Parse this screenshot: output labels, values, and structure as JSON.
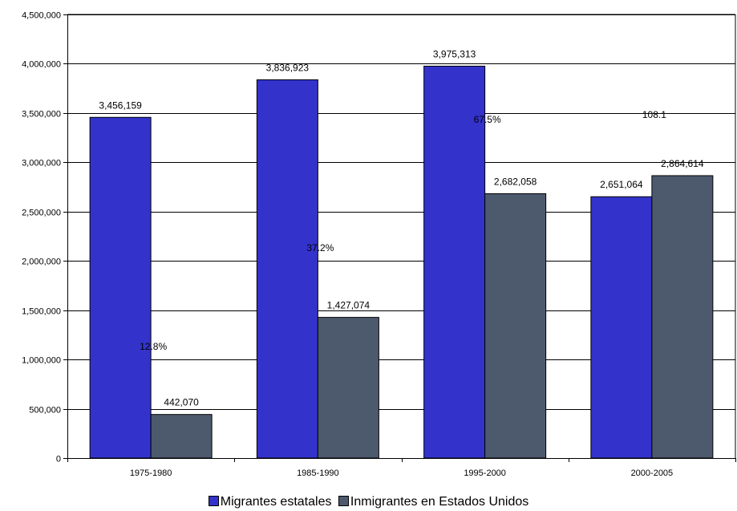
{
  "chart_data": {
    "type": "bar",
    "categories": [
      "1975-1980",
      "1985-1990",
      "1995-2000",
      "2000-2005"
    ],
    "series": [
      {
        "name": "Migrantes estatales",
        "color": "#3333cc",
        "values": [
          3456159,
          3836923,
          3975313,
          2651064
        ],
        "labels": [
          "3,456,159",
          "3,836,923",
          "3,975,313",
          "2,651,064"
        ]
      },
      {
        "name": "Inmigrantes en Estados Unidos",
        "color": "#4d5a6e",
        "values": [
          442070,
          1427074,
          2682058,
          2864614
        ],
        "labels": [
          "442,070",
          "1,427,074",
          "2,682,058",
          "2,864,614"
        ]
      }
    ],
    "annotations": [
      {
        "category": "1975-1980",
        "text": "12.8%",
        "y": 1100000
      },
      {
        "category": "1985-1990",
        "text": "37.2%",
        "y": 2100000
      },
      {
        "category": "1995-2000",
        "text": "67.5%",
        "y": 3400000
      },
      {
        "category": "2000-2005",
        "text": "108.1",
        "y": 3450000
      }
    ],
    "ylim": [
      0,
      4500000
    ],
    "yticks": [
      "0",
      "500,000",
      "1,000,000",
      "1,500,000",
      "2,000,000",
      "2,500,000",
      "3,000,000",
      "3,500,000",
      "4,000,000",
      "4,500,000"
    ],
    "grid": true,
    "legend_position": "bottom"
  }
}
